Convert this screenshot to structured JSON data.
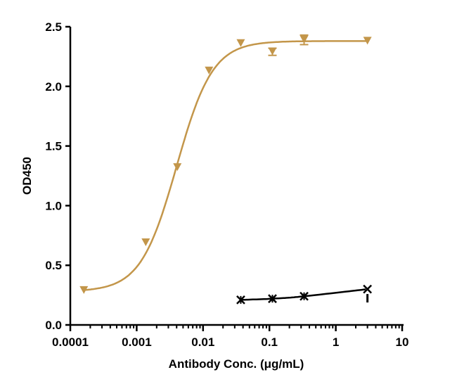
{
  "chart_data": {
    "type": "scatter",
    "xlabel": "Antibody Conc. (μg/mL)",
    "ylabel": "OD450",
    "xscale": "log",
    "xlim": [
      0.0001,
      10
    ],
    "ylim": [
      0,
      2.5
    ],
    "xticks": [
      "0.0001",
      "0.001",
      "0.01",
      "0.1",
      "1",
      "10"
    ],
    "xtick_values": [
      0.0001,
      0.001,
      0.01,
      0.1,
      1,
      10
    ],
    "yticks": [
      "0.0",
      "0.5",
      "1.0",
      "1.5",
      "2.0",
      "2.5"
    ],
    "ytick_values": [
      0,
      0.5,
      1.0,
      1.5,
      2.0,
      2.5
    ],
    "grid": false,
    "series": [
      {
        "color": "#C3964A",
        "marker": "triangle-down",
        "x": [
          0.00016,
          0.00137,
          0.0041,
          0.0123,
          0.037,
          0.111,
          0.333,
          3
        ],
        "y": [
          0.29,
          0.69,
          1.32,
          2.13,
          2.36,
          2.29,
          2.39,
          2.38
        ],
        "error": [
          0,
          0,
          0,
          0,
          0,
          0.03,
          0.04,
          0
        ],
        "fit": {
          "model": "4PL",
          "bottom": 0.28,
          "top": 2.38,
          "ec50": 0.004,
          "hill": 1.6
        }
      },
      {
        "color": "#000000",
        "marker": "x-star",
        "x": [
          0.037,
          0.111,
          0.333,
          3
        ],
        "y": [
          0.21,
          0.22,
          0.24,
          0.3
        ],
        "error": [
          0,
          0,
          0,
          0.1
        ],
        "fit": {
          "model": "smooth"
        }
      }
    ]
  }
}
